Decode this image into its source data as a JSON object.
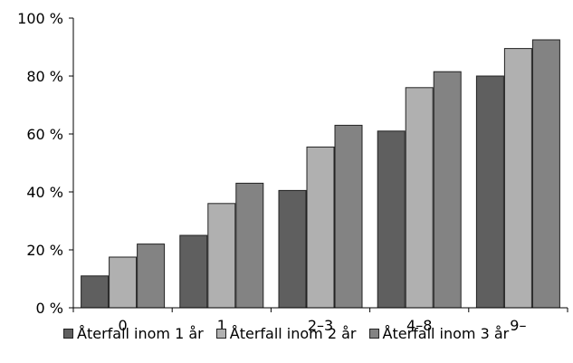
{
  "chart_data": {
    "type": "bar",
    "categories": [
      "0",
      "1",
      "2–3",
      "4–8",
      "9–"
    ],
    "series": [
      {
        "name": "Återfall inom 1 år",
        "values": [
          11,
          25,
          40.5,
          61,
          80
        ],
        "color": "#5f5f5f"
      },
      {
        "name": "Återfall inom 2 år",
        "values": [
          17.5,
          36,
          55.5,
          76,
          89.5
        ],
        "color": "#b0b0b0"
      },
      {
        "name": "Återfall inom 3 år",
        "values": [
          22,
          43,
          63,
          81.5,
          92.5
        ],
        "color": "#838383"
      }
    ],
    "yticks": [
      0,
      20,
      40,
      60,
      80,
      100
    ],
    "ytick_labels": [
      "0 %",
      "20 %",
      "40 %",
      "60 %",
      "80 %",
      "100 %"
    ],
    "ylim": [
      0,
      100
    ],
    "title": "",
    "xlabel": "",
    "ylabel": "",
    "grid": false,
    "legend_position": "bottom"
  }
}
